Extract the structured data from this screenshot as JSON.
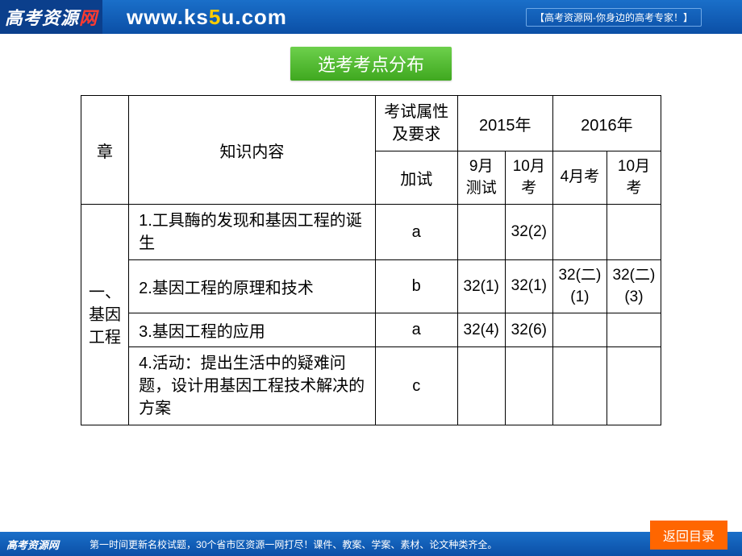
{
  "banner": {
    "logo_main": "高考资源",
    "logo_suffix": "网",
    "url_prefix": "www.ks",
    "url_highlight": "5",
    "url_suffix": "u.com",
    "tag": "【高考资源网-你身边的高考专家！】"
  },
  "title": "选考考点分布",
  "table": {
    "headers": {
      "chapter": "章",
      "knowledge": "知识内容",
      "exam_attr": "考试属性及要求",
      "year2015": "2015年",
      "year2016": "2016年",
      "sub_jiashi": "加试",
      "sub_9test": "9月测试",
      "sub_10exam": "10月考",
      "sub_4exam": "4月考",
      "sub_10exam2": "10月考"
    },
    "chapter_label": "一、基因工程",
    "rows": [
      {
        "content": "1.工具酶的发现和基因工程的诞生",
        "attr": "a",
        "c2015_9": "",
        "c2015_10": "32(2)",
        "c2016_4": "",
        "c2016_10": ""
      },
      {
        "content": "2.基因工程的原理和技术",
        "attr": "b",
        "c2015_9": "32(1)",
        "c2015_10": "32(1)",
        "c2016_4": "32(二)(1)",
        "c2016_10": "32(二)(3)"
      },
      {
        "content": "3.基因工程的应用",
        "attr": "a",
        "c2015_9": "32(4)",
        "c2015_10": "32(6)",
        "c2016_4": "",
        "c2016_10": ""
      },
      {
        "content": "4.活动：提出生活中的疑难问题，设计用基因工程技术解决的方案",
        "attr": "c",
        "c2015_9": "",
        "c2015_10": "",
        "c2016_4": "",
        "c2016_10": ""
      }
    ]
  },
  "footer": {
    "logo": "高考资源网",
    "text": "第一时间更新名校试题，30个省市区资源一网打尽！课件、教案、学案、素材、论文种类齐全。",
    "return_btn": "返回目录"
  },
  "colors": {
    "banner_bg": "#0b4fa6",
    "title_bg": "#3fa81f",
    "return_bg": "#ff6600",
    "url_highlight": "#ffcc00"
  }
}
